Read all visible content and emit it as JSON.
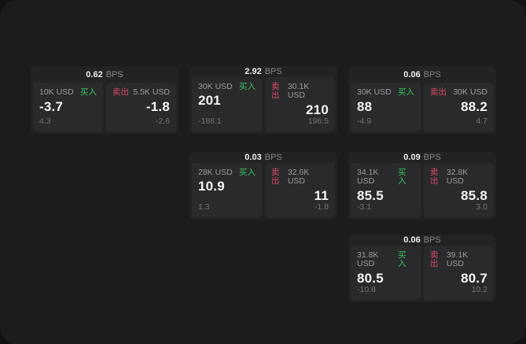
{
  "labels": {
    "bps": "BPS",
    "buy": "买入",
    "sell": "卖出"
  },
  "colors": {
    "window_bg": "#1c1c1e",
    "card_bg": "#232325",
    "panel_bg": "#2a2a2c",
    "buy_green": "#35c65e",
    "sell_red": "#d84a63"
  },
  "cards": [
    {
      "bps": "0.62",
      "buy": {
        "amount": "10K USD",
        "price": "-3.7",
        "delta": "4.3"
      },
      "sell": {
        "amount": "5.5K USD",
        "price": "-1.8",
        "delta": "-2.6"
      }
    },
    {
      "bps": "2.92",
      "buy": {
        "amount": "30K USD",
        "price": "201",
        "delta": "-188.1"
      },
      "sell": {
        "amount": "30.1K USD",
        "price": "210",
        "delta": "196.5"
      }
    },
    {
      "bps": "0.06",
      "buy": {
        "amount": "30K USD",
        "price": "88",
        "delta": "-4.9"
      },
      "sell": {
        "amount": "30K USD",
        "price": "88.2",
        "delta": "4.7"
      }
    },
    {
      "bps": "0.03",
      "buy": {
        "amount": "28K USD",
        "price": "10.9",
        "delta": "1.3"
      },
      "sell": {
        "amount": "32.6K USD",
        "price": "11",
        "delta": "-1.8"
      }
    },
    {
      "bps": "0.09",
      "buy": {
        "amount": "34.1K USD",
        "price": "85.5",
        "delta": "-3.1"
      },
      "sell": {
        "amount": "32.8K USD",
        "price": "85.8",
        "delta": "3.0"
      }
    },
    {
      "bps": "0.06",
      "buy": {
        "amount": "31.8K USD",
        "price": "80.5",
        "delta": "-10.8"
      },
      "sell": {
        "amount": "39.1K USD",
        "price": "80.7",
        "delta": "10.2"
      }
    }
  ]
}
